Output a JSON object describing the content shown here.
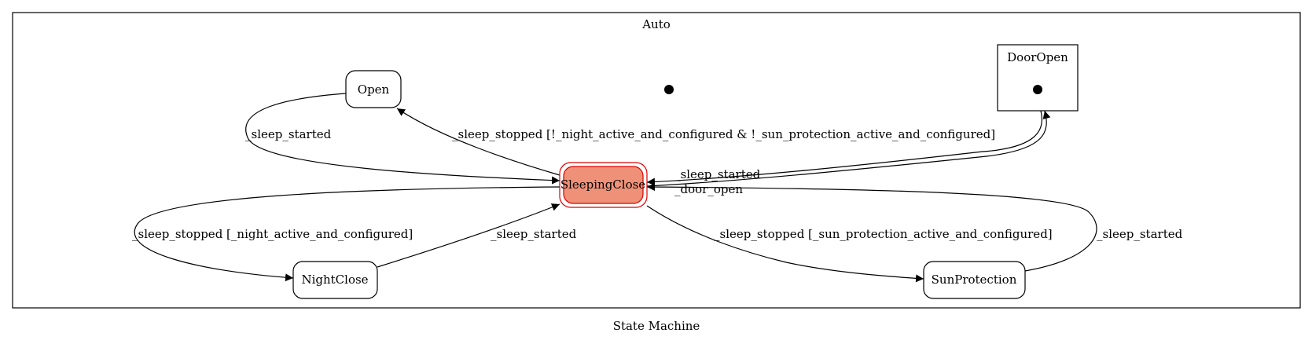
{
  "diagram": {
    "caption": "State Machine",
    "cluster_label": "Auto",
    "colors": {
      "active_fill": "#ee9178",
      "active_stroke": "#dd0000",
      "line": "#000000",
      "background": "#ffffff"
    },
    "nodes": {
      "open": "Open",
      "door_open": "DoorOpen",
      "sleeping_close": "SleepingClose",
      "night_close": "NightClose",
      "sun_protection": "SunProtection"
    },
    "edges": {
      "open_to_sleeping": "_sleep_started",
      "sleeping_to_open": "_sleep_stopped [!_night_active_and_configured & !_sun_protection_active_and_configured]",
      "door_to_sleeping": "_sleep_started",
      "sleeping_to_door": "_door_open",
      "sleeping_to_night": "_sleep_stopped [_night_active_and_configured]",
      "night_to_sleeping": "_sleep_started",
      "sleeping_to_sun": "_sleep_stopped [_sun_protection_active_and_configured]",
      "sun_to_sleeping": "_sleep_started"
    }
  }
}
